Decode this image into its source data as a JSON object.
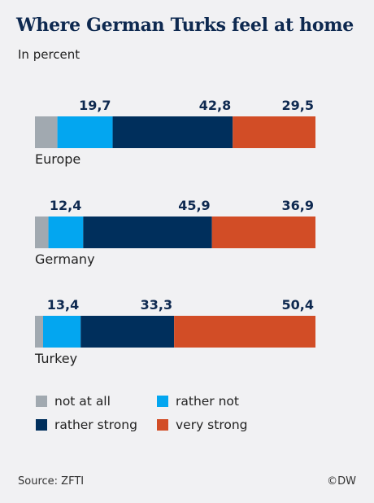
{
  "header": {
    "title": "Where German Turks feel at home",
    "subtitle": "In percent"
  },
  "chart_data": {
    "type": "bar",
    "orientation": "horizontal-stacked",
    "categories": [
      "Europe",
      "Germany",
      "Turkey"
    ],
    "series": [
      {
        "name": "not at all",
        "color": "#a1a9b0",
        "values": [
          8.0,
          4.8,
          2.9
        ],
        "labeled": false
      },
      {
        "name": "rather not",
        "color": "#03a6f0",
        "values": [
          19.7,
          12.4,
          13.4
        ],
        "labeled": true
      },
      {
        "name": "rather strong",
        "color": "#002f5c",
        "values": [
          42.8,
          45.9,
          33.3
        ],
        "labeled": true
      },
      {
        "name": "very strong",
        "color": "#d24d26",
        "values": [
          29.5,
          36.9,
          50.4
        ],
        "labeled": true
      }
    ],
    "value_labels": [
      [
        "19,7",
        "42,8",
        "29,5"
      ],
      [
        "12,4",
        "45,9",
        "36,9"
      ],
      [
        "13,4",
        "33,3",
        "50,4"
      ]
    ],
    "xlim": [
      0,
      100
    ],
    "legend_position": "bottom",
    "grid": false
  },
  "legend": [
    {
      "label": "not at all",
      "color": "#a1a9b0"
    },
    {
      "label": "rather not",
      "color": "#03a6f0"
    },
    {
      "label": "rather strong",
      "color": "#002f5c"
    },
    {
      "label": "very strong",
      "color": "#d24d26"
    }
  ],
  "footer": {
    "source": "Source: ZFTI",
    "credit": "©DW"
  }
}
